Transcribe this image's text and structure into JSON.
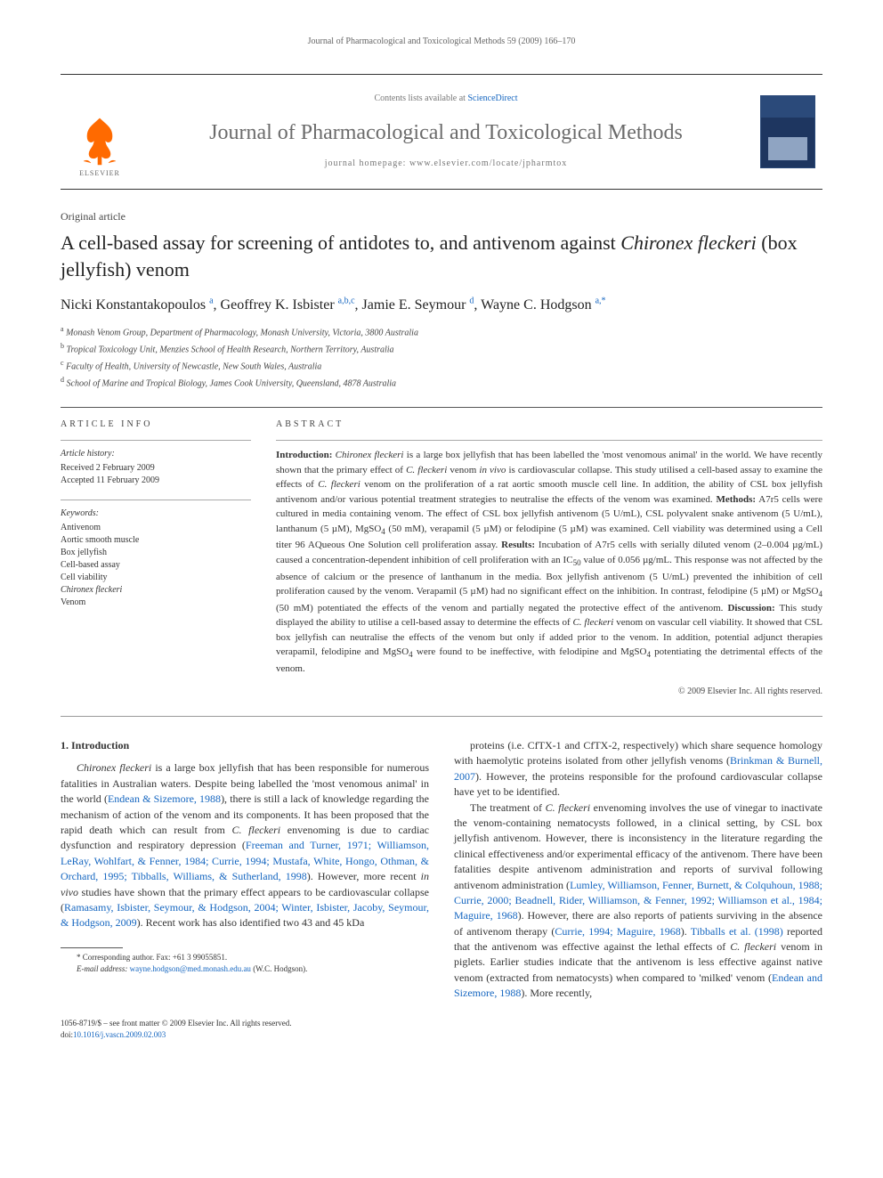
{
  "running_header": "Journal of Pharmacological and Toxicological Methods 59 (2009) 166–170",
  "masthead": {
    "contents_prefix": "Contents lists available at ",
    "contents_link": "ScienceDirect",
    "journal_title": "Journal of Pharmacological and Toxicological Methods",
    "homepage_label": "journal homepage: ",
    "homepage_url": "www.elsevier.com/locate/jpharmtox",
    "publisher_logo_text": "ELSEVIER"
  },
  "article": {
    "type": "Original article",
    "title_pre": "A cell-based assay for screening of antidotes to, and antivenom against ",
    "title_italic": "Chironex fleckeri",
    "title_post": " (box jellyfish) venom",
    "authors_html": "Nicki Konstantakopoulos <sup>a</sup>, Geoffrey K. Isbister <sup>a,b,c</sup>, Jamie E. Seymour <sup>d</sup>, Wayne C. Hodgson <sup>a,*</sup>",
    "affiliations": [
      "a  Monash Venom Group, Department of Pharmacology, Monash University, Victoria, 3800 Australia",
      "b  Tropical Toxicology Unit, Menzies School of Health Research, Northern Territory, Australia",
      "c  Faculty of Health, University of Newcastle, New South Wales, Australia",
      "d  School of Marine and Tropical Biology, James Cook University, Queensland, 4878 Australia"
    ]
  },
  "info": {
    "heading": "ARTICLE INFO",
    "history_label": "Article history:",
    "received": "Received 2 February 2009",
    "accepted": "Accepted 11 February 2009",
    "keywords_label": "Keywords:",
    "keywords": [
      "Antivenom",
      "Aortic smooth muscle",
      "Box jellyfish",
      "Cell-based assay",
      "Cell viability"
    ],
    "keyword_italic": "Chironex fleckeri",
    "keyword_last": "Venom"
  },
  "abstract": {
    "heading": "ABSTRACT",
    "copyright": "© 2009 Elsevier Inc. All rights reserved."
  },
  "section1_heading": "1. Introduction",
  "footnote": {
    "corr": "* Corresponding author. Fax: +61 3 99055851.",
    "email_label": "E-mail address: ",
    "email": "wayne.hodgson@med.monash.edu.au",
    "email_suffix": " (W.C. Hodgson)."
  },
  "footer": {
    "line1": "1056-8719/$ – see front matter © 2009 Elsevier Inc. All rights reserved.",
    "doi_label": "doi:",
    "doi": "10.1016/j.vascn.2009.02.003"
  },
  "colors": {
    "link": "#1566c0",
    "elsevier_orange": "#ff6a00",
    "rule": "#555555",
    "text": "#333333",
    "muted": "#6b6b6b"
  }
}
